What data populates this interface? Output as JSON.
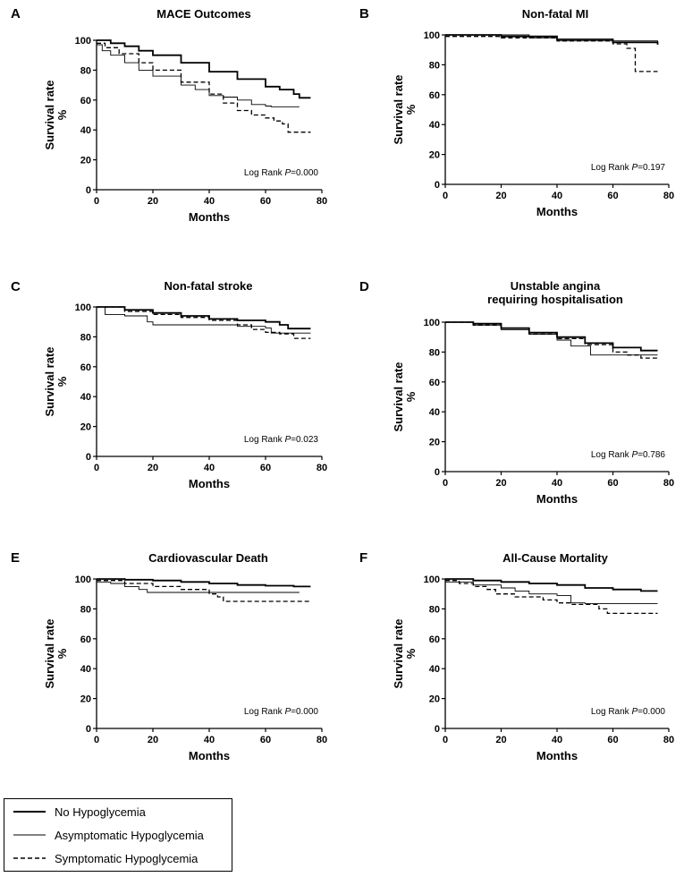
{
  "chart_data": [
    {
      "type": "line",
      "letter": "A",
      "title": [
        "MACE Outcomes"
      ],
      "xlabel": "Months",
      "ylabel": [
        "Survival rate",
        "%"
      ],
      "xlim": [
        0,
        80
      ],
      "ylim": [
        0,
        100
      ],
      "xticks": [
        "0",
        "20",
        "40",
        "60",
        "80"
      ],
      "yticks": [
        "0",
        "20",
        "40",
        "60",
        "80",
        "100"
      ],
      "annotation": {
        "prefix": "Log Rank ",
        "p": "P",
        "value": "=0.000"
      },
      "series": [
        {
          "name": "No Hypoglycemia",
          "x": [
            0,
            5,
            10,
            15,
            20,
            30,
            40,
            50,
            60,
            65,
            70,
            72,
            76
          ],
          "y": [
            100,
            98,
            96,
            93,
            90,
            85,
            79,
            74,
            69,
            67,
            64,
            61.5,
            61.5
          ]
        },
        {
          "name": "Asymptomatic Hypoglycemia",
          "x": [
            0,
            2,
            5,
            10,
            15,
            20,
            30,
            35,
            40,
            45,
            50,
            55,
            60,
            62,
            65,
            72
          ],
          "y": [
            97,
            93,
            90,
            85,
            80,
            76,
            70,
            67,
            63,
            62,
            60,
            57,
            56,
            55.5,
            55.5,
            55.5
          ]
        },
        {
          "name": "Symptomatic Hypoglycemia",
          "x": [
            0,
            3,
            8,
            15,
            20,
            30,
            40,
            45,
            50,
            55,
            60,
            63,
            66,
            68,
            72,
            76
          ],
          "y": [
            98,
            95,
            91,
            85,
            80,
            72,
            64,
            58,
            53,
            50,
            48,
            46,
            44,
            38.5,
            38.5,
            38.5
          ]
        }
      ]
    },
    {
      "type": "line",
      "letter": "B",
      "title": [
        "Non-fatal MI"
      ],
      "xlabel": "Months",
      "ylabel": [
        "Survival rate",
        "%"
      ],
      "xlim": [
        0,
        80
      ],
      "ylim": [
        0,
        100
      ],
      "xticks": [
        "0",
        "20",
        "40",
        "60",
        "80"
      ],
      "yticks": [
        "0",
        "20",
        "40",
        "60",
        "80",
        "100"
      ],
      "annotation": {
        "prefix": "Log Rank ",
        "p": "P",
        "value": "=0.197"
      },
      "series": [
        {
          "name": "No Hypoglycemia",
          "x": [
            0,
            20,
            40,
            60,
            76
          ],
          "y": [
            100,
            99,
            97,
            95,
            93.5
          ]
        },
        {
          "name": "Asymptomatic Hypoglycemia",
          "x": [
            0,
            25,
            30,
            40,
            76
          ],
          "y": [
            100,
            100,
            98,
            96,
            95
          ]
        },
        {
          "name": "Symptomatic Hypoglycemia",
          "x": [
            0,
            20,
            40,
            60,
            65,
            68,
            76
          ],
          "y": [
            99,
            98,
            96,
            94,
            91,
            75.5,
            75.5
          ]
        }
      ]
    },
    {
      "type": "line",
      "letter": "C",
      "title": [
        "Non-fatal stroke"
      ],
      "xlabel": "Months",
      "ylabel": [
        "Survival rate",
        "%"
      ],
      "xlim": [
        0,
        80
      ],
      "ylim": [
        0,
        100
      ],
      "xticks": [
        "0",
        "20",
        "40",
        "60",
        "80"
      ],
      "yticks": [
        "0",
        "20",
        "40",
        "60",
        "80",
        "100"
      ],
      "annotation": {
        "prefix": "Log Rank ",
        "p": "P",
        "value": "=0.023"
      },
      "series": [
        {
          "name": "No Hypoglycemia",
          "x": [
            0,
            10,
            20,
            30,
            40,
            50,
            60,
            65,
            68,
            76
          ],
          "y": [
            100,
            98,
            96,
            94,
            92,
            91,
            90,
            88,
            85.5,
            85.5
          ]
        },
        {
          "name": "Asymptomatic Hypoglycemia",
          "x": [
            0,
            3,
            10,
            18,
            20,
            30,
            40,
            50,
            60,
            62,
            76
          ],
          "y": [
            100,
            95,
            94,
            90,
            88,
            88,
            88,
            87,
            86,
            82.5,
            82.5
          ]
        },
        {
          "name": "Symptomatic Hypoglycemia",
          "x": [
            0,
            10,
            20,
            30,
            40,
            50,
            55,
            60,
            65,
            70,
            76
          ],
          "y": [
            100,
            97,
            95,
            93,
            91,
            88,
            85,
            83,
            82,
            79,
            79
          ]
        }
      ]
    },
    {
      "type": "line",
      "letter": "D",
      "title": [
        "Unstable angina",
        "requiring hospitalisation"
      ],
      "xlabel": "Months",
      "ylabel": [
        "Survival rate",
        "%"
      ],
      "xlim": [
        0,
        80
      ],
      "ylim": [
        0,
        100
      ],
      "xticks": [
        "0",
        "20",
        "40",
        "60",
        "80"
      ],
      "yticks": [
        "0",
        "20",
        "40",
        "60",
        "80",
        "100"
      ],
      "annotation": {
        "prefix": "Log Rank ",
        "p": "P",
        "value": "=0.786"
      },
      "series": [
        {
          "name": "No Hypoglycemia",
          "x": [
            0,
            10,
            20,
            30,
            40,
            50,
            60,
            70,
            76
          ],
          "y": [
            100,
            99,
            96,
            93,
            90,
            86,
            83,
            81,
            81
          ]
        },
        {
          "name": "Asymptomatic Hypoglycemia",
          "x": [
            0,
            10,
            20,
            30,
            40,
            45,
            50,
            52,
            60,
            76
          ],
          "y": [
            100,
            98,
            95,
            92,
            88,
            84,
            84,
            78,
            78,
            78
          ]
        },
        {
          "name": "Symptomatic Hypoglycemia",
          "x": [
            0,
            10,
            20,
            30,
            40,
            50,
            60,
            65,
            70,
            76
          ],
          "y": [
            100,
            98,
            96,
            92,
            89,
            85,
            80,
            78,
            76,
            76
          ]
        }
      ]
    },
    {
      "type": "line",
      "letter": "E",
      "title": [
        "Cardiovascular Death"
      ],
      "xlabel": "Months",
      "ylabel": [
        "Survival rate",
        "%"
      ],
      "xlim": [
        0,
        80
      ],
      "ylim": [
        0,
        100
      ],
      "xticks": [
        "0",
        "20",
        "40",
        "60",
        "80"
      ],
      "yticks": [
        "0",
        "20",
        "40",
        "60",
        "80",
        "100"
      ],
      "annotation": {
        "prefix": "Log Rank ",
        "p": "P",
        "value": "=0.000"
      },
      "series": [
        {
          "name": "No Hypoglycemia",
          "x": [
            0,
            10,
            20,
            30,
            40,
            50,
            60,
            70,
            76
          ],
          "y": [
            100,
            99.5,
            99,
            98,
            97,
            96,
            95.5,
            95,
            95
          ]
        },
        {
          "name": "Asymptomatic Hypoglycemia",
          "x": [
            0,
            5,
            10,
            15,
            18,
            25,
            40,
            72
          ],
          "y": [
            98,
            97,
            95,
            93,
            91,
            91,
            91,
            91
          ]
        },
        {
          "name": "Symptomatic Hypoglycemia",
          "x": [
            0,
            10,
            20,
            30,
            40,
            43,
            45,
            76
          ],
          "y": [
            99,
            97,
            95,
            93,
            90,
            88,
            85,
            85
          ]
        }
      ]
    },
    {
      "type": "line",
      "letter": "F",
      "title": [
        "All-Cause Mortality"
      ],
      "xlabel": "Months",
      "ylabel": [
        "Survival rate",
        "%"
      ],
      "xlim": [
        0,
        80
      ],
      "ylim": [
        0,
        100
      ],
      "xticks": [
        "0",
        "20",
        "40",
        "60",
        "80"
      ],
      "yticks": [
        "0",
        "20",
        "40",
        "60",
        "80",
        "100"
      ],
      "annotation": {
        "prefix": "Log Rank ",
        "p": "P",
        "value": "=0.000"
      },
      "series": [
        {
          "name": "No Hypoglycemia",
          "x": [
            0,
            10,
            20,
            30,
            40,
            50,
            60,
            70,
            76
          ],
          "y": [
            100,
            99,
            98,
            97,
            96,
            94,
            93,
            92,
            92
          ]
        },
        {
          "name": "Asymptomatic Hypoglycemia",
          "x": [
            0,
            10,
            20,
            25,
            30,
            40,
            45,
            50,
            76
          ],
          "y": [
            98,
            96,
            94,
            92,
            90,
            89,
            84,
            83.5,
            83.5
          ]
        },
        {
          "name": "Symptomatic Hypoglycemia",
          "x": [
            0,
            5,
            10,
            15,
            18,
            25,
            35,
            40,
            45,
            55,
            58,
            76
          ],
          "y": [
            99,
            97,
            95,
            93,
            90,
            88,
            86,
            84,
            83,
            80,
            77,
            77
          ]
        }
      ]
    }
  ],
  "legend": {
    "items": [
      {
        "label": "No Hypoglycemia",
        "style": "solid-thick"
      },
      {
        "label": "Asymptomatic Hypoglycemia",
        "style": "solid-thin"
      },
      {
        "label": "Symptomatic Hypoglycemia",
        "style": "dashed"
      }
    ]
  },
  "colors": {
    "line": "#000000",
    "background": "#ffffff"
  }
}
